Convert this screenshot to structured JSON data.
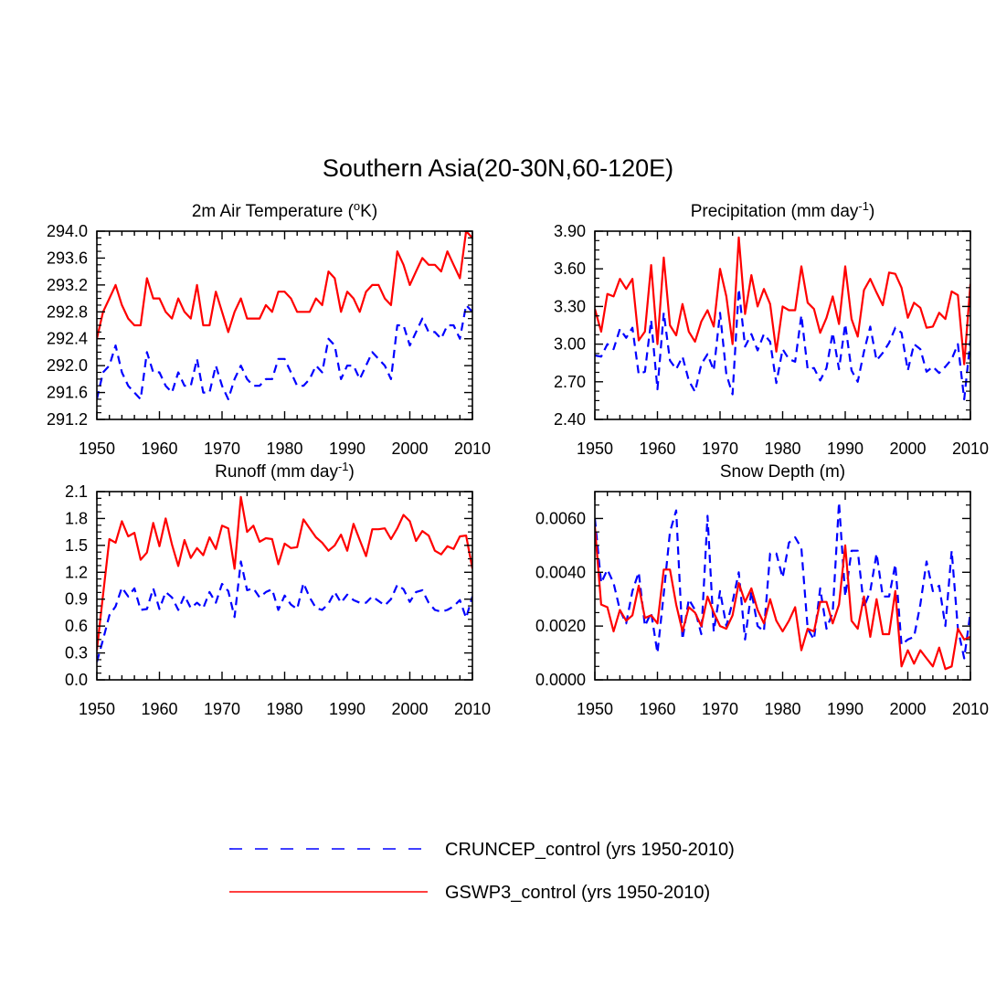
{
  "figure_title": "Southern Asia(20-30N,60-120E)",
  "colors": {
    "cruncep": "#0000ff",
    "gswp3": "#ff0000",
    "axis": "#000000"
  },
  "legend": [
    {
      "name": "CRUNCEP_control (yrs 1950-2010)",
      "style": "dashed",
      "color": "#0000ff"
    },
    {
      "name": "GSWP3_control (yrs 1950-2010)",
      "style": "solid",
      "color": "#ff0000"
    }
  ],
  "chart_data": [
    {
      "type": "line",
      "title": "2m Air Temperature (oK)",
      "title_parts": {
        "pre": "2m Air Temperature (",
        "sup": "o",
        "post": "K)"
      },
      "xlabel": "",
      "ylabel": "",
      "xlim": [
        1950,
        2010
      ],
      "ylim": [
        291.2,
        294.0
      ],
      "xticks": [
        1950,
        1960,
        1970,
        1980,
        1990,
        2000,
        2010
      ],
      "yticks": [
        291.2,
        291.6,
        292.0,
        292.4,
        292.8,
        293.2,
        293.6,
        294.0
      ],
      "ytick_decimals": 1,
      "x_start": 1950,
      "x_step": 1,
      "series": [
        {
          "name": "CRUNCEP_control",
          "values": [
            291.5,
            291.9,
            292.0,
            292.3,
            291.9,
            291.7,
            291.6,
            291.5,
            292.2,
            291.9,
            291.9,
            291.7,
            291.6,
            291.9,
            291.7,
            291.7,
            292.1,
            291.6,
            291.6,
            292.0,
            291.7,
            291.5,
            291.8,
            292.0,
            291.8,
            291.7,
            291.7,
            291.8,
            291.8,
            292.1,
            292.1,
            291.9,
            291.7,
            291.7,
            291.8,
            292.0,
            291.9,
            292.4,
            292.3,
            291.8,
            292.0,
            292.0,
            291.8,
            292.0,
            292.2,
            292.1,
            292.0,
            291.8,
            292.6,
            292.6,
            292.3,
            292.5,
            292.7,
            292.5,
            292.5,
            292.4,
            292.6,
            292.6,
            292.4,
            292.9,
            292.8
          ]
        },
        {
          "name": "GSWP3_control",
          "values": [
            292.4,
            292.8,
            293.0,
            293.2,
            292.9,
            292.7,
            292.6,
            292.6,
            293.3,
            293.0,
            293.0,
            292.8,
            292.7,
            293.0,
            292.8,
            292.7,
            293.2,
            292.6,
            292.6,
            293.1,
            292.8,
            292.5,
            292.8,
            293.0,
            292.7,
            292.7,
            292.7,
            292.9,
            292.8,
            293.1,
            293.1,
            293.0,
            292.8,
            292.8,
            292.8,
            293.0,
            292.9,
            293.4,
            293.3,
            292.8,
            293.1,
            293.0,
            292.8,
            293.1,
            293.2,
            293.2,
            293.0,
            292.9,
            293.7,
            293.5,
            293.2,
            293.4,
            293.6,
            293.5,
            293.5,
            293.4,
            293.7,
            293.5,
            293.3,
            294.0,
            293.9
          ]
        }
      ]
    },
    {
      "type": "line",
      "title": "Precipitation (mm day-1)",
      "title_parts": {
        "pre": "Precipitation (mm day",
        "sup": "-1",
        "post": ")"
      },
      "xlabel": "",
      "ylabel": "",
      "xlim": [
        1950,
        2010
      ],
      "ylim": [
        2.4,
        3.9
      ],
      "xticks": [
        1950,
        1960,
        1970,
        1980,
        1990,
        2000,
        2010
      ],
      "yticks": [
        2.4,
        2.7,
        3.0,
        3.3,
        3.6,
        3.9
      ],
      "ytick_decimals": 2,
      "x_start": 1950,
      "x_step": 1,
      "series": [
        {
          "name": "CRUNCEP_control",
          "values": [
            2.91,
            2.9,
            3.0,
            2.96,
            3.12,
            3.05,
            3.13,
            2.76,
            2.78,
            3.19,
            2.64,
            3.25,
            2.87,
            2.8,
            2.9,
            2.71,
            2.62,
            2.84,
            2.92,
            2.79,
            3.25,
            2.76,
            2.6,
            3.44,
            2.98,
            3.08,
            2.95,
            3.08,
            3.02,
            2.69,
            2.96,
            2.88,
            2.86,
            3.23,
            2.8,
            2.81,
            2.71,
            2.81,
            3.09,
            2.8,
            3.16,
            2.79,
            2.7,
            2.94,
            3.14,
            2.87,
            2.93,
            3.01,
            3.13,
            3.09,
            2.79,
            3.0,
            2.96,
            2.78,
            2.82,
            2.77,
            2.82,
            2.88,
            3.0,
            2.56,
            3.03
          ]
        },
        {
          "name": "GSWP3_control",
          "values": [
            3.28,
            3.1,
            3.4,
            3.38,
            3.52,
            3.44,
            3.52,
            3.03,
            3.1,
            3.63,
            3.0,
            3.69,
            3.15,
            3.07,
            3.32,
            3.1,
            3.02,
            3.18,
            3.27,
            3.14,
            3.6,
            3.38,
            3.0,
            3.85,
            3.24,
            3.55,
            3.3,
            3.44,
            3.32,
            2.94,
            3.3,
            3.27,
            3.27,
            3.62,
            3.33,
            3.28,
            3.09,
            3.21,
            3.38,
            3.16,
            3.62,
            3.2,
            3.06,
            3.43,
            3.52,
            3.41,
            3.31,
            3.57,
            3.56,
            3.45,
            3.21,
            3.33,
            3.29,
            3.13,
            3.14,
            3.25,
            3.2,
            3.42,
            3.39,
            2.84,
            3.48
          ]
        }
      ]
    },
    {
      "type": "line",
      "title": "Runoff (mm day-1)",
      "title_parts": {
        "pre": "Runoff (mm day",
        "sup": "-1",
        "post": ")"
      },
      "xlabel": "",
      "ylabel": "",
      "xlim": [
        1950,
        2010
      ],
      "ylim": [
        0.0,
        2.1
      ],
      "xticks": [
        1950,
        1960,
        1970,
        1980,
        1990,
        2000,
        2010
      ],
      "yticks": [
        0.0,
        0.3,
        0.6,
        0.9,
        1.2,
        1.5,
        1.8,
        2.1
      ],
      "ytick_decimals": 1,
      "x_start": 1950,
      "x_step": 1,
      "series": [
        {
          "name": "CRUNCEP_control",
          "values": [
            0.2,
            0.45,
            0.72,
            0.82,
            1.03,
            0.93,
            1.02,
            0.78,
            0.79,
            1.02,
            0.79,
            0.98,
            0.92,
            0.78,
            0.94,
            0.8,
            0.86,
            0.8,
            0.98,
            0.86,
            1.07,
            0.99,
            0.7,
            1.32,
            1.0,
            1.02,
            0.92,
            0.98,
            1.01,
            0.78,
            0.94,
            0.84,
            0.79,
            1.08,
            0.92,
            0.8,
            0.78,
            0.85,
            0.98,
            0.86,
            0.95,
            0.89,
            0.86,
            0.86,
            0.93,
            0.88,
            0.83,
            0.9,
            1.06,
            1.01,
            0.87,
            0.98,
            1.0,
            0.86,
            0.78,
            0.76,
            0.78,
            0.82,
            0.89,
            0.69,
            0.93
          ]
        },
        {
          "name": "GSWP3_control",
          "values": [
            0.33,
            0.95,
            1.57,
            1.53,
            1.77,
            1.6,
            1.64,
            1.34,
            1.42,
            1.75,
            1.49,
            1.8,
            1.51,
            1.27,
            1.56,
            1.36,
            1.47,
            1.39,
            1.59,
            1.46,
            1.72,
            1.69,
            1.24,
            2.04,
            1.65,
            1.72,
            1.54,
            1.58,
            1.57,
            1.29,
            1.52,
            1.47,
            1.48,
            1.79,
            1.69,
            1.59,
            1.53,
            1.44,
            1.5,
            1.62,
            1.44,
            1.74,
            1.56,
            1.38,
            1.68,
            1.68,
            1.69,
            1.57,
            1.69,
            1.84,
            1.77,
            1.55,
            1.66,
            1.61,
            1.44,
            1.4,
            1.49,
            1.46,
            1.6,
            1.61,
            1.24
          ]
        }
      ]
    },
    {
      "type": "line",
      "title": "Snow Depth (m)",
      "title_parts": {
        "pre": "Snow Depth (m)",
        "sup": "",
        "post": ""
      },
      "xlabel": "",
      "ylabel": "",
      "xlim": [
        1950,
        2010
      ],
      "ylim": [
        0.0,
        0.007
      ],
      "xticks": [
        1950,
        1960,
        1970,
        1980,
        1990,
        2000,
        2010
      ],
      "yticks": [
        0.0,
        0.002,
        0.004,
        0.006
      ],
      "ytick_decimals": 4,
      "x_start": 1950,
      "x_step": 1,
      "series": [
        {
          "name": "CRUNCEP_control",
          "values": [
            0.006,
            0.0036,
            0.0041,
            0.0036,
            0.0026,
            0.0021,
            0.0033,
            0.004,
            0.002,
            0.0025,
            0.001,
            0.0032,
            0.0055,
            0.0063,
            0.0015,
            0.003,
            0.0026,
            0.0017,
            0.0061,
            0.0018,
            0.0033,
            0.002,
            0.0029,
            0.004,
            0.0015,
            0.0033,
            0.002,
            0.0018,
            0.0047,
            0.0047,
            0.0038,
            0.0051,
            0.0053,
            0.0049,
            0.0019,
            0.0015,
            0.0034,
            0.0019,
            0.0025,
            0.0066,
            0.0031,
            0.0048,
            0.0048,
            0.0027,
            0.0033,
            0.0047,
            0.0031,
            0.0031,
            0.0043,
            0.0013,
            0.0015,
            0.0016,
            0.0028,
            0.0044,
            0.0033,
            0.0035,
            0.002,
            0.0048,
            0.0019,
            0.0008,
            0.0025
          ]
        },
        {
          "name": "GSWP3_control",
          "values": [
            0.0057,
            0.0028,
            0.0027,
            0.0018,
            0.0026,
            0.0022,
            0.0024,
            0.0035,
            0.0023,
            0.0024,
            0.0021,
            0.0041,
            0.0041,
            0.0028,
            0.0018,
            0.0027,
            0.0025,
            0.002,
            0.0031,
            0.0025,
            0.002,
            0.0019,
            0.0024,
            0.0036,
            0.0029,
            0.0034,
            0.0026,
            0.0021,
            0.003,
            0.0022,
            0.0018,
            0.0022,
            0.0027,
            0.0011,
            0.0019,
            0.0018,
            0.0029,
            0.0029,
            0.0021,
            0.0028,
            0.005,
            0.0022,
            0.0019,
            0.0031,
            0.0016,
            0.003,
            0.0017,
            0.0017,
            0.0033,
            0.0005,
            0.0011,
            0.0006,
            0.0011,
            0.0008,
            0.0005,
            0.0012,
            0.0004,
            0.0005,
            0.0019,
            0.0015,
            0.0016
          ]
        }
      ]
    }
  ]
}
